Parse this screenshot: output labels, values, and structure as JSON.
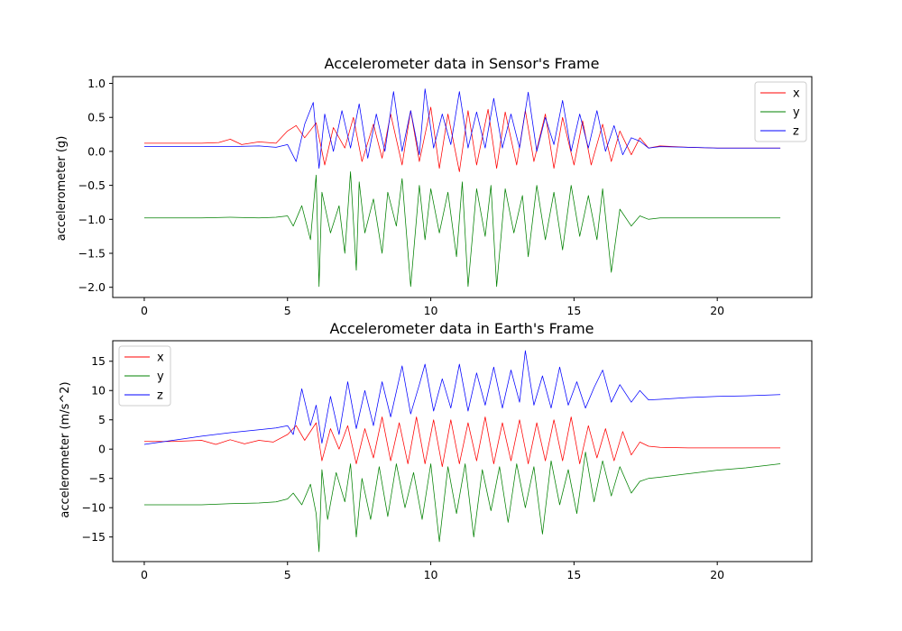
{
  "colors": {
    "x": "#ff0000",
    "y": "#008000",
    "z": "#0000ff"
  },
  "chart_data": [
    {
      "type": "line",
      "title": "Accelerometer data in Sensor's Frame",
      "xlabel": "",
      "ylabel": "accelerometer (g)",
      "xlim": [
        -1.1,
        23.3
      ],
      "ylim": [
        -2.15,
        1.1
      ],
      "xticks": [
        0,
        5,
        10,
        15,
        20
      ],
      "yticks": [
        -2.0,
        -1.5,
        -1.0,
        -0.5,
        0.0,
        0.5,
        1.0
      ],
      "xtick_labels": [
        "0",
        "5",
        "10",
        "15",
        "20"
      ],
      "ytick_labels": [
        "−2.0",
        "−1.5",
        "−1.0",
        "−0.5",
        "0.0",
        "0.5",
        "1.0"
      ],
      "grid": false,
      "legend": "upper-right",
      "series": [
        {
          "name": "x",
          "color": "#ff0000",
          "x": [
            0,
            1,
            2,
            2.6,
            3.0,
            3.4,
            4.0,
            4.6,
            5.0,
            5.3,
            5.6,
            6.0,
            6.3,
            6.6,
            7.0,
            7.3,
            7.6,
            8.0,
            8.3,
            8.6,
            9.0,
            9.3,
            9.6,
            10.0,
            10.3,
            10.6,
            11.0,
            11.3,
            11.6,
            12.0,
            12.3,
            12.6,
            13.0,
            13.3,
            13.6,
            14.0,
            14.3,
            14.6,
            15.0,
            15.3,
            15.6,
            16.0,
            16.3,
            16.6,
            17.0,
            17.3,
            17.6,
            18.0,
            19.0,
            20.0,
            21.0,
            22.2
          ],
          "y": [
            0.12,
            0.12,
            0.12,
            0.13,
            0.18,
            0.1,
            0.14,
            0.12,
            0.3,
            0.38,
            0.2,
            0.42,
            -0.2,
            0.35,
            0.05,
            0.5,
            -0.15,
            0.4,
            -0.1,
            0.55,
            -0.2,
            0.6,
            -0.15,
            0.65,
            -0.25,
            0.55,
            -0.3,
            0.6,
            -0.2,
            0.62,
            -0.25,
            0.58,
            -0.2,
            0.6,
            -0.15,
            0.55,
            -0.25,
            0.5,
            -0.2,
            0.45,
            -0.2,
            0.4,
            -0.15,
            0.3,
            -0.05,
            0.2,
            0.05,
            0.08,
            0.06,
            0.05,
            0.05,
            0.05
          ]
        },
        {
          "name": "y",
          "color": "#008000",
          "x": [
            0,
            1,
            2,
            3,
            4,
            4.6,
            5.0,
            5.2,
            5.5,
            5.8,
            6.0,
            6.1,
            6.2,
            6.5,
            6.8,
            7.0,
            7.2,
            7.4,
            7.5,
            7.7,
            8.0,
            8.3,
            8.5,
            8.8,
            9.0,
            9.3,
            9.6,
            9.8,
            10.0,
            10.3,
            10.6,
            10.9,
            11.1,
            11.3,
            11.6,
            11.9,
            12.1,
            12.3,
            12.6,
            12.9,
            13.2,
            13.4,
            13.7,
            14.0,
            14.3,
            14.6,
            14.9,
            15.2,
            15.5,
            15.8,
            16.0,
            16.3,
            16.6,
            17.0,
            17.3,
            17.6,
            18.0,
            19.0,
            20.0,
            21.0,
            22.2
          ],
          "y": [
            -0.98,
            -0.98,
            -0.98,
            -0.97,
            -0.98,
            -0.97,
            -0.95,
            -1.1,
            -0.8,
            -1.3,
            -0.35,
            -1.99,
            -0.6,
            -1.2,
            -0.8,
            -1.5,
            -0.3,
            -1.75,
            -0.45,
            -1.2,
            -0.7,
            -1.5,
            -0.6,
            -1.1,
            -0.4,
            -1.99,
            -0.5,
            -1.3,
            -0.55,
            -1.2,
            -0.6,
            -1.55,
            -0.45,
            -1.99,
            -0.55,
            -1.25,
            -0.5,
            -1.99,
            -0.55,
            -1.2,
            -0.65,
            -1.55,
            -0.5,
            -1.3,
            -0.6,
            -1.45,
            -0.5,
            -1.25,
            -0.65,
            -1.3,
            -0.55,
            -1.78,
            -0.85,
            -1.1,
            -0.95,
            -1.0,
            -0.98,
            -0.98,
            -0.98,
            -0.98,
            -0.98
          ]
        },
        {
          "name": "z",
          "color": "#0000ff",
          "x": [
            0,
            1,
            2,
            3,
            4,
            4.6,
            5.0,
            5.3,
            5.6,
            5.9,
            6.1,
            6.3,
            6.6,
            6.9,
            7.2,
            7.5,
            7.8,
            8.1,
            8.4,
            8.7,
            9.0,
            9.3,
            9.6,
            9.8,
            10.1,
            10.4,
            10.7,
            11.0,
            11.3,
            11.6,
            11.9,
            12.2,
            12.5,
            12.8,
            13.1,
            13.4,
            13.7,
            14.0,
            14.3,
            14.6,
            14.9,
            15.2,
            15.5,
            15.8,
            16.1,
            16.4,
            16.7,
            17.0,
            17.3,
            17.6,
            18.0,
            19.0,
            20.0,
            21.0,
            22.2
          ],
          "y": [
            0.07,
            0.07,
            0.07,
            0.07,
            0.08,
            0.06,
            0.1,
            -0.15,
            0.4,
            0.72,
            -0.25,
            0.55,
            0.0,
            0.6,
            0.05,
            0.7,
            -0.1,
            0.55,
            0.0,
            0.88,
            0.0,
            0.6,
            -0.05,
            0.92,
            0.05,
            0.55,
            0.1,
            0.88,
            0.05,
            0.58,
            0.05,
            0.78,
            0.05,
            0.55,
            0.05,
            0.87,
            0.0,
            0.5,
            0.1,
            0.75,
            0.0,
            0.55,
            0.05,
            0.6,
            0.0,
            0.38,
            -0.05,
            0.2,
            0.15,
            0.05,
            0.07,
            0.06,
            0.05,
            0.05,
            0.05
          ]
        }
      ]
    },
    {
      "type": "line",
      "title": "Accelerometer data in Earth's Frame",
      "xlabel": "",
      "ylabel": "accelerometer (m/s^2)",
      "xlim": [
        -1.1,
        23.3
      ],
      "ylim": [
        -19.2,
        18.5
      ],
      "xticks": [
        0,
        5,
        10,
        15,
        20
      ],
      "yticks": [
        -15,
        -10,
        -5,
        0,
        5,
        10,
        15
      ],
      "xtick_labels": [
        "0",
        "5",
        "10",
        "15",
        "20"
      ],
      "ytick_labels": [
        "−15",
        "−10",
        "−5",
        "0",
        "5",
        "10",
        "15"
      ],
      "grid": false,
      "legend": "upper-left",
      "series": [
        {
          "name": "x",
          "color": "#ff0000",
          "x": [
            0,
            1,
            2,
            2.5,
            3.0,
            3.5,
            4.0,
            4.5,
            5.0,
            5.3,
            5.6,
            6.0,
            6.2,
            6.5,
            6.8,
            7.1,
            7.4,
            7.7,
            8.0,
            8.3,
            8.6,
            8.9,
            9.2,
            9.5,
            9.8,
            10.1,
            10.4,
            10.7,
            11.0,
            11.3,
            11.6,
            11.9,
            12.2,
            12.5,
            12.8,
            13.1,
            13.4,
            13.7,
            14.0,
            14.3,
            14.6,
            14.9,
            15.2,
            15.5,
            15.8,
            16.1,
            16.4,
            16.7,
            17.0,
            17.3,
            17.6,
            18.0,
            19.0,
            20.0,
            21.0,
            22.2
          ],
          "y": [
            1.3,
            1.3,
            1.5,
            0.8,
            1.6,
            0.9,
            1.5,
            1.2,
            2.5,
            4.0,
            1.5,
            4.5,
            -2.0,
            3.5,
            0.0,
            4.0,
            -2.5,
            3.5,
            -1.5,
            5.5,
            -2.0,
            4.5,
            -2.5,
            5.5,
            -2.5,
            5.0,
            -3.0,
            5.0,
            -2.5,
            4.5,
            -2.0,
            5.5,
            -2.5,
            4.5,
            -2.0,
            5.0,
            -2.5,
            4.5,
            -2.0,
            5.0,
            -2.0,
            5.5,
            -2.5,
            4.0,
            -1.5,
            3.5,
            -2.0,
            3.0,
            -1.0,
            1.2,
            0.5,
            0.3,
            0.2,
            0.2,
            0.2,
            0.2
          ]
        },
        {
          "name": "y",
          "color": "#008000",
          "x": [
            0,
            1,
            2,
            3,
            4,
            4.6,
            5.0,
            5.2,
            5.5,
            5.8,
            6.0,
            6.1,
            6.2,
            6.4,
            6.7,
            7.0,
            7.2,
            7.4,
            7.6,
            7.9,
            8.2,
            8.5,
            8.8,
            9.1,
            9.4,
            9.7,
            10.0,
            10.3,
            10.6,
            10.9,
            11.2,
            11.5,
            11.8,
            12.1,
            12.4,
            12.7,
            13.0,
            13.3,
            13.6,
            13.9,
            14.2,
            14.5,
            14.8,
            15.1,
            15.4,
            15.7,
            16.0,
            16.3,
            16.6,
            17.0,
            17.3,
            17.6,
            18.0,
            19.0,
            20.0,
            21.0,
            22.2
          ],
          "y": [
            -9.5,
            -9.5,
            -9.5,
            -9.3,
            -9.2,
            -9.0,
            -8.5,
            -7.5,
            -9.5,
            -6.0,
            -11.0,
            -17.5,
            -3.5,
            -12.0,
            -4.0,
            -9.0,
            -2.5,
            -15.0,
            -5.0,
            -12.0,
            -3.0,
            -11.5,
            -2.5,
            -10.0,
            -4.0,
            -12.0,
            -2.5,
            -15.8,
            -3.0,
            -11.0,
            -2.5,
            -15.0,
            -3.5,
            -10.5,
            -3.0,
            -12.5,
            -2.5,
            -10.0,
            -3.0,
            -14.5,
            -2.0,
            -9.5,
            -3.5,
            -11.0,
            -0.5,
            -9.0,
            -2.0,
            -8.0,
            -3.0,
            -7.5,
            -5.5,
            -5.0,
            -4.8,
            -4.2,
            -3.6,
            -3.2,
            -2.5
          ]
        },
        {
          "name": "z",
          "color": "#0000ff",
          "x": [
            0,
            1,
            2,
            3,
            4,
            4.6,
            5.0,
            5.2,
            5.5,
            5.8,
            6.0,
            6.2,
            6.5,
            6.8,
            7.1,
            7.4,
            7.7,
            8.0,
            8.3,
            8.6,
            9.0,
            9.3,
            9.6,
            9.8,
            10.1,
            10.4,
            10.7,
            11.0,
            11.3,
            11.6,
            11.9,
            12.2,
            12.5,
            12.8,
            13.1,
            13.3,
            13.6,
            13.9,
            14.2,
            14.5,
            14.8,
            15.1,
            15.4,
            15.7,
            16.0,
            16.3,
            16.6,
            17.0,
            17.3,
            17.6,
            18.0,
            19.0,
            20.0,
            21.0,
            22.2
          ],
          "y": [
            0.8,
            1.5,
            2.2,
            2.8,
            3.3,
            3.6,
            4.0,
            2.5,
            10.3,
            4.0,
            7.5,
            1.0,
            9.0,
            2.5,
            11.5,
            3.5,
            10.0,
            4.0,
            11.5,
            5.5,
            14.2,
            6.0,
            11.0,
            14.5,
            6.5,
            12.0,
            7.0,
            14.5,
            6.5,
            13.0,
            7.5,
            14.0,
            7.0,
            13.5,
            8.0,
            16.8,
            7.5,
            12.5,
            7.0,
            14.0,
            7.5,
            11.5,
            7.0,
            10.5,
            13.5,
            8.0,
            11.0,
            8.0,
            10.0,
            8.4,
            8.5,
            8.8,
            9.0,
            9.1,
            9.3
          ]
        }
      ]
    }
  ]
}
